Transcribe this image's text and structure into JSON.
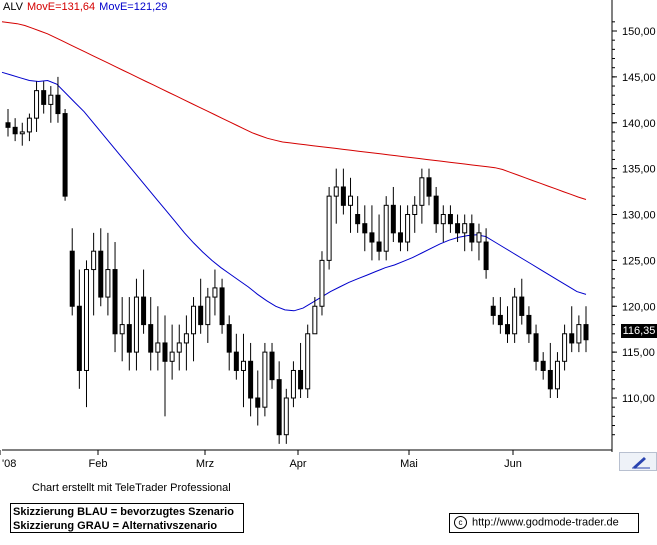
{
  "legend": {
    "ticker": "ALV",
    "ma1": "MovE=131,64",
    "ma2": "MovE=121,29"
  },
  "colors": {
    "ticker": "#000000",
    "ma1": "#d40000",
    "ma2": "#0000cc",
    "candles": "#000000"
  },
  "current_price": "116,35",
  "credit": "Chart erstellt mit TeleTrader Professional",
  "notes": {
    "line1": "Skizzierung BLAU = bevorzugtes Szenario",
    "line2": "Skizzierung GRAU = Alternativszenario"
  },
  "url": "http://www.godmode-trader.de",
  "icons": {
    "copyright": "copyright-icon",
    "corner": "pencil-tool-icon"
  },
  "chart_data": {
    "type": "candlestick",
    "title": "ALV",
    "y_axis": {
      "side": "right",
      "range": [
        104,
        152
      ],
      "ticks": [
        "110,00",
        "115,00",
        "120,00",
        "125,00",
        "130,00",
        "135,00",
        "140,00",
        "145,00",
        "150,00"
      ]
    },
    "x_axis": {
      "tick_labels": [
        "'08",
        "Feb",
        "Mrz",
        "Apr",
        "Mai",
        "Jun"
      ]
    },
    "grid": false,
    "ohlc": [
      [
        140,
        141.5,
        138.5,
        139.5
      ],
      [
        139.5,
        140.5,
        138,
        138.8
      ],
      [
        138.8,
        140,
        137.5,
        139
      ],
      [
        139,
        141,
        138,
        140.5
      ],
      [
        140.5,
        144.5,
        139,
        143.5
      ],
      [
        143.5,
        144.5,
        141,
        142
      ],
      [
        142,
        144,
        140,
        143
      ],
      [
        143,
        145,
        140,
        141
      ],
      [
        141,
        141.5,
        131.5,
        132
      ],
      [
        126,
        128.5,
        119,
        120
      ],
      [
        120,
        124,
        111,
        113
      ],
      [
        113,
        125,
        109,
        124
      ],
      [
        124,
        128,
        119,
        126
      ],
      [
        126,
        128.5,
        120,
        121
      ],
      [
        121,
        128,
        119,
        124
      ],
      [
        124,
        127,
        115,
        117
      ],
      [
        117,
        121,
        114,
        118
      ],
      [
        118,
        121,
        113,
        115
      ],
      [
        115,
        123,
        113,
        121
      ],
      [
        121,
        124,
        117,
        118
      ],
      [
        118,
        121,
        113,
        115
      ],
      [
        115,
        120,
        113,
        116
      ],
      [
        116,
        119,
        108,
        114
      ],
      [
        114,
        118,
        112,
        115
      ],
      [
        115,
        118,
        113,
        116
      ],
      [
        116,
        119,
        113,
        117
      ],
      [
        117,
        121,
        114,
        120
      ],
      [
        120,
        123,
        117,
        118
      ],
      [
        118,
        122,
        116,
        121
      ],
      [
        121,
        124,
        119,
        122
      ],
      [
        122,
        123,
        117,
        118
      ],
      [
        118,
        119,
        113,
        115
      ],
      [
        115,
        117,
        112,
        113
      ],
      [
        113,
        117,
        109,
        114
      ],
      [
        114,
        116,
        108,
        110
      ],
      [
        110,
        113,
        107,
        109
      ],
      [
        109,
        116,
        108,
        115
      ],
      [
        115,
        116,
        111,
        112
      ],
      [
        112,
        114,
        105,
        106
      ],
      [
        106,
        111,
        105,
        110
      ],
      [
        110,
        114,
        109,
        113
      ],
      [
        113,
        116,
        110,
        111
      ],
      [
        111,
        118,
        110,
        117
      ],
      [
        117,
        121,
        117,
        120
      ],
      [
        120,
        126,
        119,
        125
      ],
      [
        125,
        133,
        124,
        132
      ],
      [
        132,
        135,
        129,
        133
      ],
      [
        133,
        135,
        130,
        131
      ],
      [
        131,
        134,
        128,
        132
      ],
      [
        130,
        132,
        128,
        129
      ],
      [
        129,
        131,
        126,
        128
      ],
      [
        128,
        131,
        125,
        127
      ],
      [
        127,
        130,
        125,
        126
      ],
      [
        126,
        132,
        125,
        131
      ],
      [
        131,
        133,
        127,
        128
      ],
      [
        128,
        131,
        126,
        127
      ],
      [
        127,
        131,
        126,
        130
      ],
      [
        130,
        132,
        128,
        131
      ],
      [
        131,
        135,
        129,
        134
      ],
      [
        134,
        135,
        131,
        132
      ],
      [
        132,
        133,
        128,
        129
      ],
      [
        129,
        131,
        127,
        130
      ],
      [
        130,
        131,
        128,
        129
      ],
      [
        129,
        130,
        127,
        128
      ],
      [
        128,
        130,
        126,
        129
      ],
      [
        129,
        130,
        126,
        127
      ],
      [
        127,
        129,
        125,
        128
      ],
      [
        127,
        128.5,
        123,
        124
      ],
      [
        120,
        121,
        118,
        119
      ],
      [
        119,
        121,
        117,
        118
      ],
      [
        118,
        120,
        116,
        117
      ],
      [
        117,
        122,
        116,
        121
      ],
      [
        121,
        123,
        118,
        119
      ],
      [
        119,
        120,
        116,
        117
      ],
      [
        117,
        118,
        113,
        114
      ],
      [
        114,
        115,
        112,
        113
      ],
      [
        113,
        116,
        110,
        111
      ],
      [
        111,
        115,
        110,
        114
      ],
      [
        114,
        118,
        113,
        117
      ],
      [
        117,
        120,
        115,
        116
      ],
      [
        116,
        119,
        115,
        118
      ],
      [
        118,
        120,
        115,
        116.35
      ]
    ],
    "series": [
      {
        "name": "MovE=131,64",
        "color": "#d40000",
        "values": [
          151,
          150.9,
          150.8,
          150.6,
          150.3,
          150,
          149.7,
          149.3,
          148.9,
          148.5,
          148.1,
          147.7,
          147.3,
          146.9,
          146.5,
          146.1,
          145.7,
          145.3,
          144.9,
          144.5,
          144.1,
          143.7,
          143.3,
          142.9,
          142.5,
          142.1,
          141.7,
          141.3,
          140.9,
          140.5,
          140.1,
          139.7,
          139.3,
          138.9,
          138.6,
          138.3,
          138.1,
          137.9,
          137.8,
          137.7,
          137.6,
          137.5,
          137.4,
          137.3,
          137.2,
          137.1,
          137,
          136.9,
          136.8,
          136.7,
          136.6,
          136.5,
          136.4,
          136.3,
          136.2,
          136.1,
          136,
          135.9,
          135.8,
          135.7,
          135.6,
          135.5,
          135.4,
          135.3,
          135.2,
          135.1,
          134.9,
          134.6,
          134.3,
          134,
          133.7,
          133.4,
          133.1,
          132.8,
          132.5,
          132.2,
          131.9,
          131.64
        ]
      },
      {
        "name": "MovE=121,29",
        "color": "#0000cc",
        "values": [
          145.5,
          145.2,
          144.9,
          144.6,
          144.5,
          144.6,
          144.2,
          143.2,
          142.2,
          141.2,
          140,
          138.8,
          137.6,
          136.4,
          135.2,
          134,
          132.8,
          131.6,
          130.4,
          129.2,
          128,
          126.9,
          125.9,
          125,
          124.2,
          123.5,
          122.8,
          122.1,
          121.3,
          120.6,
          120,
          119.6,
          119.5,
          119.8,
          120.4,
          121,
          121.6,
          122.1,
          122.6,
          123,
          123.4,
          123.8,
          124.2,
          124.5,
          124.9,
          125.3,
          125.8,
          126.3,
          126.8,
          127.2,
          127.5,
          127.7,
          127.8,
          127.6,
          127,
          126.4,
          125.8,
          125.2,
          124.6,
          124,
          123.4,
          122.8,
          122.2,
          121.6,
          121.29
        ]
      }
    ]
  }
}
